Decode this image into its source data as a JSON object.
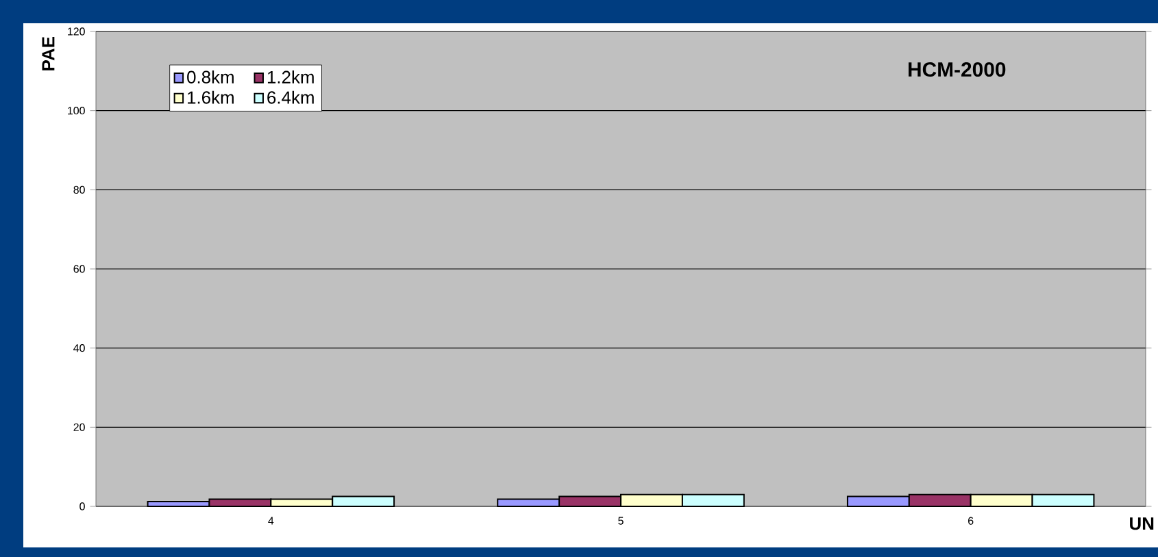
{
  "chart_data": {
    "type": "bar",
    "title": "HCM-2000",
    "xlabel": "UN",
    "ylabel": "PAE",
    "categories": [
      "4",
      "5",
      "6"
    ],
    "series": [
      {
        "name": "0.8km",
        "color": "#9999ff",
        "values": [
          1.2,
          1.8,
          2.5
        ]
      },
      {
        "name": "1.2km",
        "color": "#993366",
        "values": [
          1.8,
          2.5,
          3
        ]
      },
      {
        "name": "1.6km",
        "color": "#ffffcc",
        "values": [
          1.8,
          3,
          3
        ]
      },
      {
        "name": "6.4km",
        "color": "#ccffff",
        "values": [
          2.5,
          3,
          3
        ]
      }
    ],
    "ylim": [
      0,
      120
    ],
    "yticks": [
      0,
      20,
      40,
      60,
      80,
      100,
      120
    ],
    "grid": "y",
    "legend": "top left"
  }
}
